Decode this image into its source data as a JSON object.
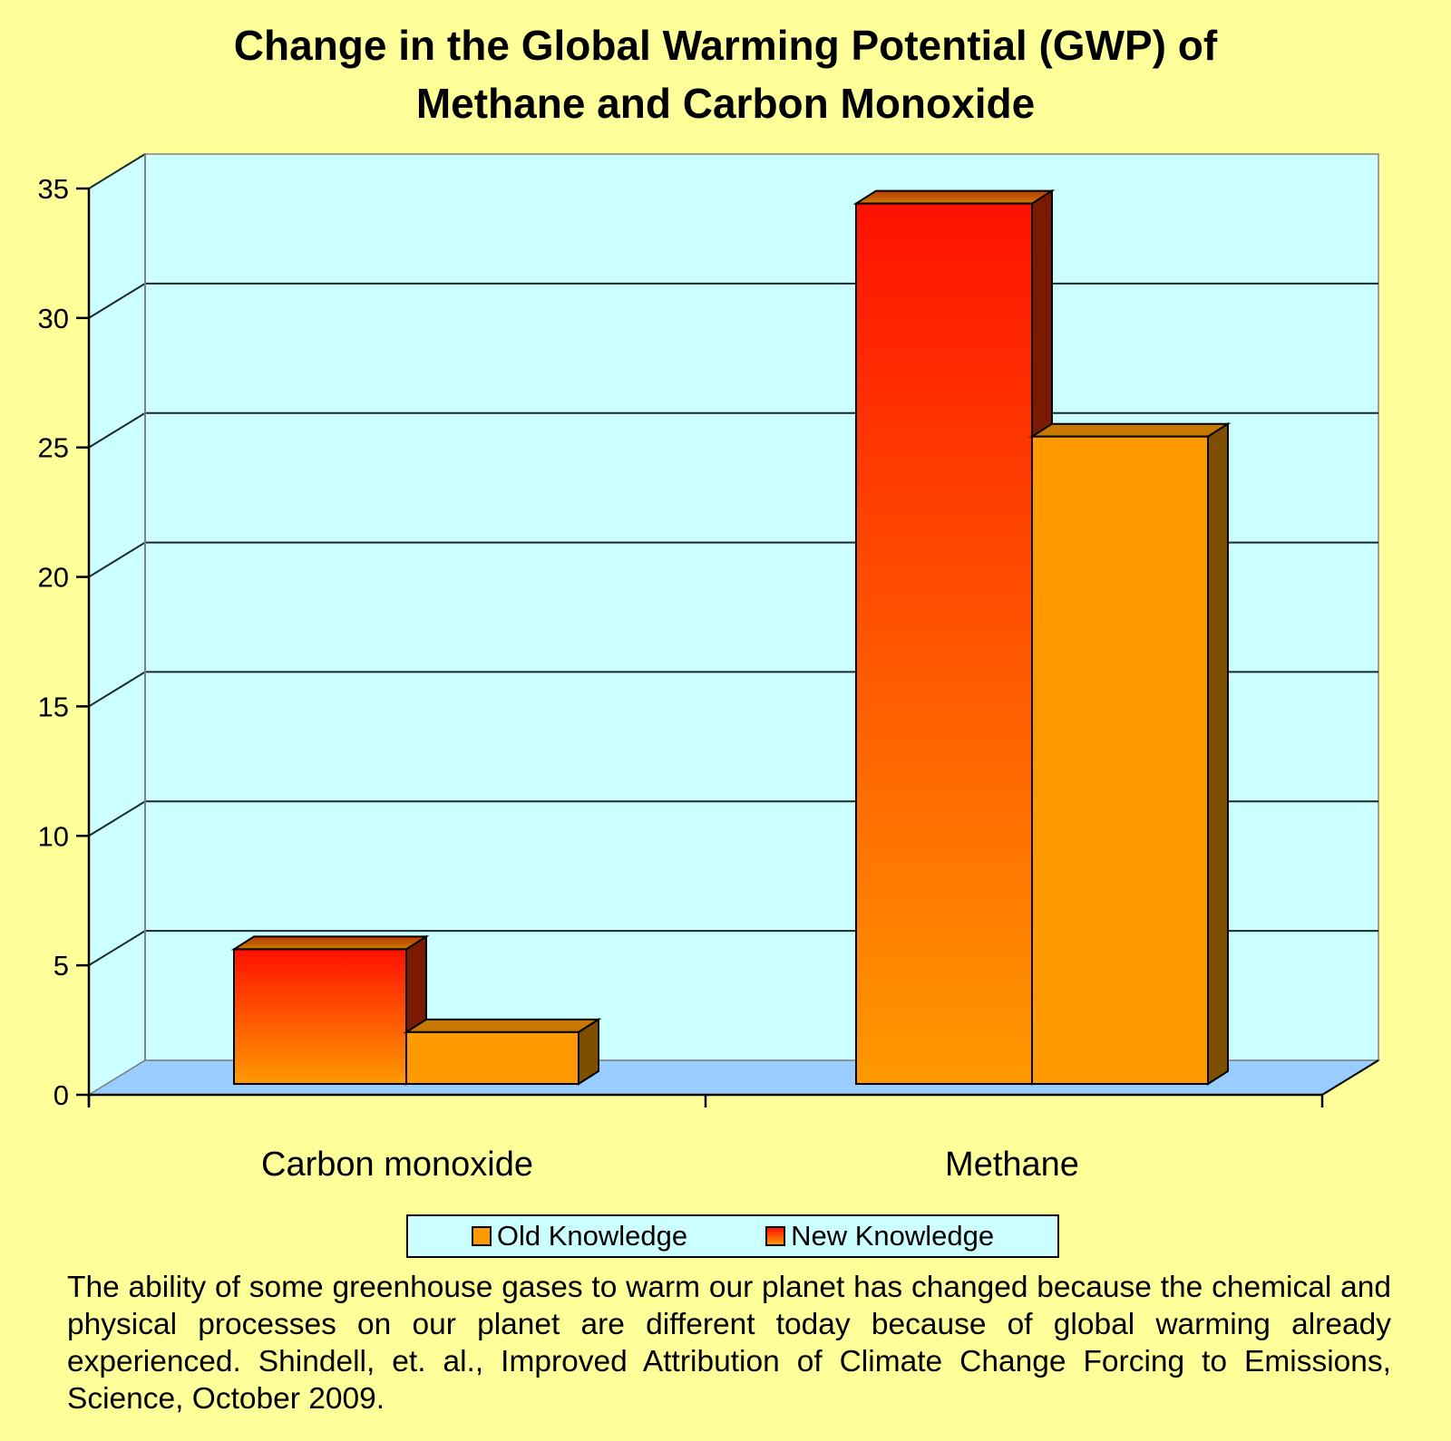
{
  "title_line1": "Change in the Global Warming Potential (GWP) of",
  "title_line2": "Methane and Carbon Monoxide",
  "caption": "The ability of some greenhouse gases to warm our planet has changed because the chemical and physical processes on our planet are different today because of global warming already experienced. Shindell, et. al., Improved Attribution of Climate Change Forcing to Emissions, Science, October 2009.",
  "colors": {
    "background": "#ffff99",
    "wall": "#ccffff",
    "floor": "#99ccff",
    "old_knowledge": "#ff9900",
    "new_knowledge_top": "#ff1100",
    "new_knowledge_bottom": "#ff9900"
  },
  "chart_data": {
    "type": "bar",
    "title": "Change in the Global Warming Potential (GWP) of Methane and Carbon Monoxide",
    "xlabel": "",
    "ylabel": "",
    "categories": [
      "Carbon monoxide",
      "Methane"
    ],
    "series": [
      {
        "name": "New Knowledge",
        "values": [
          5.2,
          34
        ]
      },
      {
        "name": "Old Knowledge",
        "values": [
          2,
          25
        ]
      }
    ],
    "ylim": [
      0,
      35
    ],
    "yticks": [
      "0",
      "5",
      "10",
      "15",
      "20",
      "25",
      "30",
      "35"
    ],
    "grid": true,
    "legend": [
      "Old Knowledge",
      "New Knowledge"
    ],
    "legend_position": "bottom",
    "style": "3d-clustered-column"
  }
}
